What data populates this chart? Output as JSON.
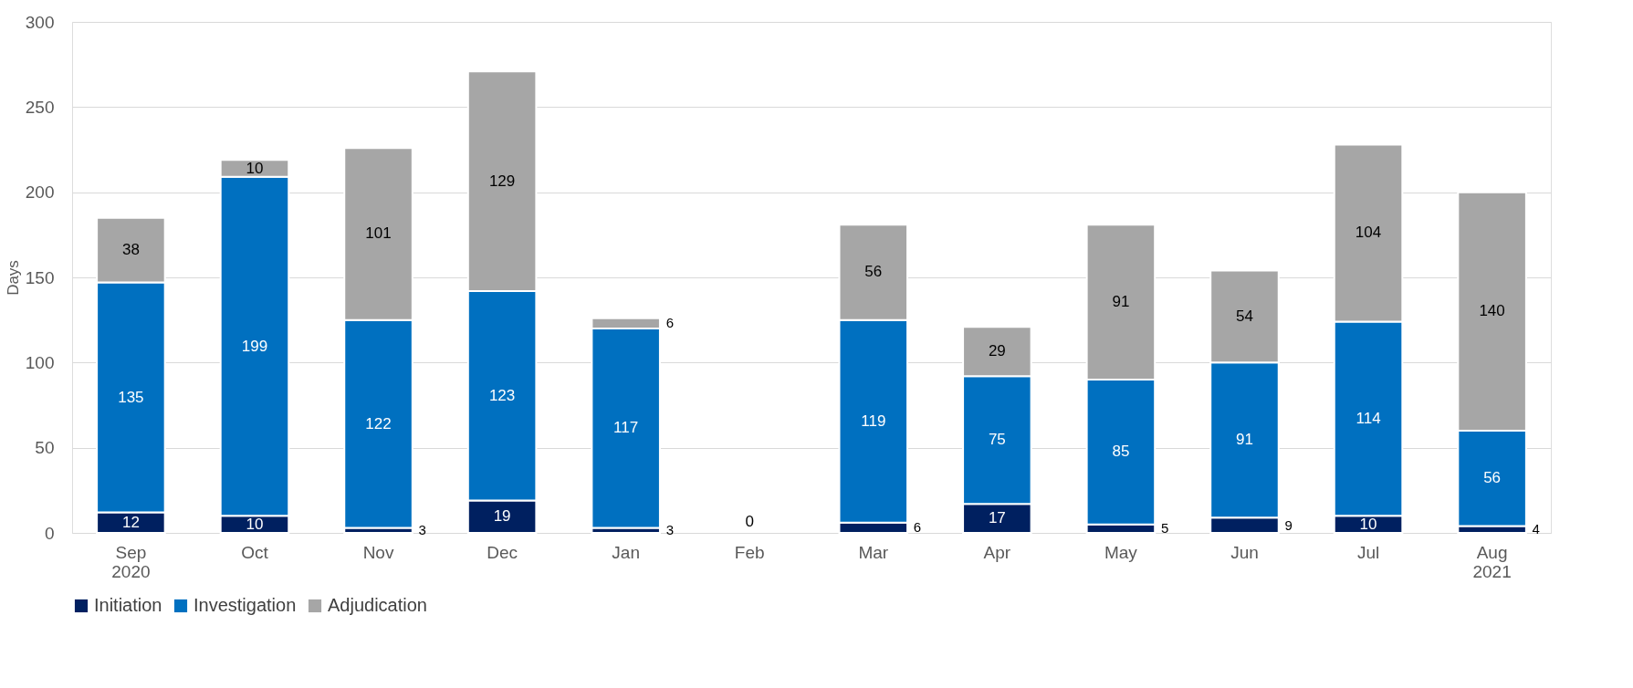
{
  "chart_data": {
    "type": "bar",
    "stacked": true,
    "ylabel": "Days",
    "categories": [
      "Sep\n2020",
      "Oct",
      "Nov",
      "Dec",
      "Jan",
      "Feb",
      "Mar",
      "Apr",
      "May",
      "Jun",
      "Jul",
      "Aug\n2021"
    ],
    "series": [
      {
        "name": "Initiation",
        "color": "#002060",
        "values": [
          12,
          10,
          3,
          19,
          3,
          0,
          6,
          17,
          5,
          9,
          10,
          4
        ],
        "value_labels": [
          "12",
          "10",
          "3",
          "19",
          "3",
          "0",
          "6",
          "17",
          "5",
          "9",
          "10",
          "4"
        ]
      },
      {
        "name": "Investigation",
        "color": "#0070c0",
        "values": [
          135,
          199,
          122,
          123,
          117,
          0,
          119,
          75,
          85,
          91,
          114,
          56
        ],
        "value_labels": [
          "135",
          "199",
          "122",
          "123",
          "117",
          null,
          "119",
          "75",
          "85",
          "91",
          "114",
          "56"
        ]
      },
      {
        "name": "Adjudication",
        "color": "#a6a6a6",
        "values": [
          38,
          10,
          101,
          129,
          6,
          0,
          56,
          29,
          91,
          54,
          104,
          140
        ],
        "value_labels": [
          "38",
          "10",
          "101",
          "129",
          "6",
          null,
          "56",
          "29",
          "91",
          "54",
          "104",
          "140"
        ]
      }
    ],
    "ylim": [
      0,
      300
    ],
    "yticks": [
      0,
      50,
      100,
      150,
      200,
      250,
      300
    ],
    "grid": "y",
    "legend": "bottom"
  }
}
